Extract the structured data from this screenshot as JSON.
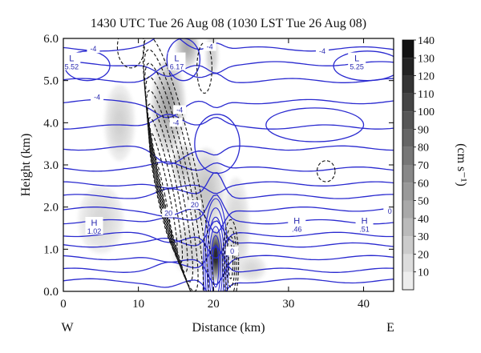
{
  "chart_data": {
    "type": "heatmap",
    "title": "1430 UTC Tue 26 Aug 08 (1030 LST Tue 26 Aug 08)",
    "xlabel": "Distance (km)",
    "ylabel": "Height (km)",
    "xlim": [
      0,
      44
    ],
    "ylim": [
      0.0,
      6.0
    ],
    "x_ticks": [
      0,
      10,
      20,
      30,
      40
    ],
    "x_tick_labels": [
      "0",
      "10",
      "20",
      "30",
      "40"
    ],
    "y_ticks": [
      0.0,
      1.0,
      2.0,
      3.0,
      4.0,
      5.0,
      6.0
    ],
    "y_tick_labels": [
      "0.0",
      "1.0",
      "2.0",
      "3.0",
      "4.0",
      "5.0",
      "6.0"
    ],
    "direction_left": "W",
    "direction_right": "E",
    "colorbar": {
      "label": "(cm s⁻¹)",
      "levels": [
        10,
        20,
        30,
        40,
        50,
        60,
        70,
        80,
        90,
        100,
        110,
        120,
        130,
        140
      ],
      "tick_labels": [
        "10",
        "20",
        "30",
        "40",
        "50",
        "60",
        "70",
        "80",
        "90",
        "100",
        "110",
        "120",
        "130",
        "140"
      ]
    },
    "shaded_field": [
      {
        "x": 7.5,
        "y": 4.0,
        "sx": 2.0,
        "sy": 0.9,
        "value": 22
      },
      {
        "x": 14.0,
        "y": 4.4,
        "sx": 2.2,
        "sy": 1.1,
        "value": 48
      },
      {
        "x": 16.5,
        "y": 5.8,
        "sx": 1.5,
        "sy": 0.5,
        "value": 45
      },
      {
        "x": 20.3,
        "y": 0.85,
        "sx": 0.75,
        "sy": 0.6,
        "value": 140
      },
      {
        "x": 19.0,
        "y": 2.4,
        "sx": 2.5,
        "sy": 1.0,
        "value": 28
      },
      {
        "x": 23.0,
        "y": 1.5,
        "sx": 1.8,
        "sy": 1.2,
        "value": 20
      },
      {
        "x": 5.0,
        "y": 1.7,
        "sx": 3.0,
        "sy": 0.8,
        "value": 18
      },
      {
        "x": 17.0,
        "y": 1.0,
        "sx": 2.5,
        "sy": 0.6,
        "value": 20
      },
      {
        "x": 25.0,
        "y": 0.55,
        "sx": 2.0,
        "sy": 0.3,
        "value": 18
      },
      {
        "x": 19.8,
        "y": 5.6,
        "sx": 0.8,
        "sy": 0.5,
        "value": 25
      },
      {
        "x": 16.0,
        "y": 3.0,
        "sx": 1.5,
        "sy": 0.5,
        "value": 30
      }
    ],
    "contour_labels": [
      {
        "x": 4.0,
        "y": 5.75,
        "text": "-4"
      },
      {
        "x": 19.5,
        "y": 5.8,
        "text": "-4"
      },
      {
        "x": 34.5,
        "y": 5.7,
        "text": "-4"
      },
      {
        "x": 4.5,
        "y": 4.6,
        "text": "-4"
      },
      {
        "x": 15.5,
        "y": 4.3,
        "text": "-4"
      },
      {
        "x": 15.0,
        "y": 4.0,
        "text": "-4"
      },
      {
        "x": 14.0,
        "y": 1.85,
        "text": "20"
      },
      {
        "x": 17.5,
        "y": 2.05,
        "text": "20"
      },
      {
        "x": 22.5,
        "y": 0.95,
        "text": "0"
      },
      {
        "x": 43.5,
        "y": 1.9,
        "text": "0"
      }
    ],
    "extrema_labels": [
      {
        "x": 1.0,
        "y": 5.4,
        "letter": "L",
        "value": "5.52"
      },
      {
        "x": 15.0,
        "y": 5.4,
        "letter": "L",
        "value": "6.17"
      },
      {
        "x": 39.0,
        "y": 5.4,
        "letter": "L",
        "value": "5.25"
      },
      {
        "x": 4.0,
        "y": 1.5,
        "letter": "H",
        "value": "1.02"
      },
      {
        "x": 31.0,
        "y": 1.55,
        "letter": "H",
        "value": ".46"
      },
      {
        "x": 40.0,
        "y": 1.55,
        "letter": "H",
        "value": ".51"
      }
    ]
  }
}
